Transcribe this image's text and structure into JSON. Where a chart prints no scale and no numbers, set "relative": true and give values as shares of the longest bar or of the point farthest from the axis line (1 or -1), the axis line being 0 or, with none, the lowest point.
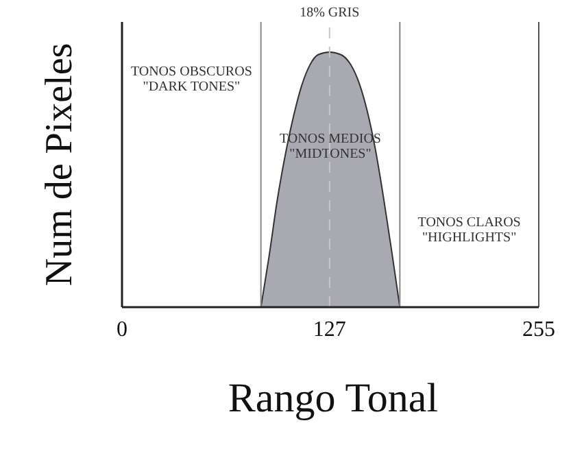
{
  "chart_data": {
    "type": "area",
    "relative": true,
    "xlabel": "Rango Tonal",
    "ylabel": "Num de Pixeles",
    "xlim": [
      0,
      255
    ],
    "xticks": [
      0,
      127,
      255
    ],
    "x": [
      85,
      90,
      95,
      100,
      105,
      110,
      115,
      120,
      127,
      134,
      140,
      145,
      150,
      155,
      160,
      165,
      170
    ],
    "series": [
      {
        "color": "#a9a9b1",
        "values": [
          0,
          0.2,
          0.42,
          0.6,
          0.75,
          0.87,
          0.95,
          0.99,
          1,
          0.99,
          0.95,
          0.88,
          0.77,
          0.62,
          0.43,
          0.22,
          0
        ]
      }
    ],
    "ref_lines": [
      {
        "axis": "x",
        "value": 85,
        "color": "#888888",
        "line_style": "solid"
      },
      {
        "axis": "x",
        "value": 170,
        "color": "#888888",
        "line_style": "solid"
      },
      {
        "axis": "x",
        "value": 127,
        "label": "18% GRIS",
        "color": "#c8c8c8",
        "line_style": "dashed"
      }
    ],
    "annotations": [
      "TONOS OBSCUROS\n\"DARK TONES\"",
      "TONOS MEDIOS\n\"MIDTONES\"",
      "TONOS CLAROS\n\"HIGHLIGHTS\""
    ]
  }
}
